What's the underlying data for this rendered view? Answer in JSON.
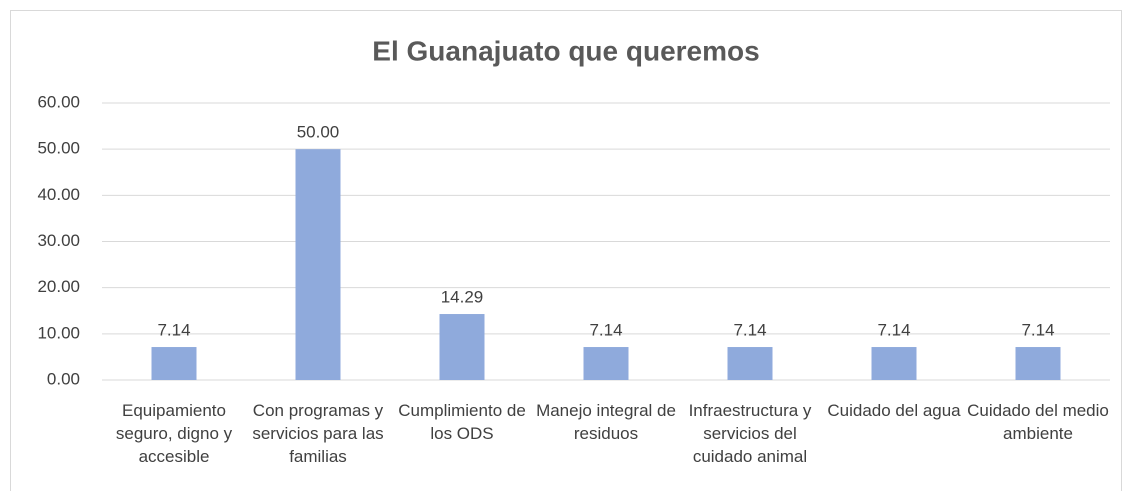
{
  "chart_data": {
    "type": "bar",
    "title": "El Guanajuato que queremos",
    "categories": [
      "Equipamiento seguro, digno y accesible",
      "Con programas y servicios para las familias",
      "Cumplimiento de los ODS",
      "Manejo integral de residuos",
      "Infraestructura y servicios del cuidado animal",
      "Cuidado del agua",
      "Cuidado del medio ambiente"
    ],
    "values": [
      7.14,
      50,
      14.29,
      7.14,
      7.14,
      7.14,
      7.14
    ],
    "value_labels": [
      "7.14",
      "50.00",
      "14.29",
      "7.14",
      "7.14",
      "7.14",
      "7.14"
    ],
    "color": "#8faadc",
    "ylim": [
      0,
      60
    ],
    "yticks": [
      {
        "value": 0,
        "label": "0.00"
      },
      {
        "value": 10,
        "label": "10.00"
      },
      {
        "value": 20,
        "label": "20.00"
      },
      {
        "value": 30,
        "label": "30.00"
      },
      {
        "value": 40,
        "label": "40.00"
      },
      {
        "value": 50,
        "label": "50.00"
      },
      {
        "value": 60,
        "label": "60.00"
      }
    ],
    "grid": true
  }
}
